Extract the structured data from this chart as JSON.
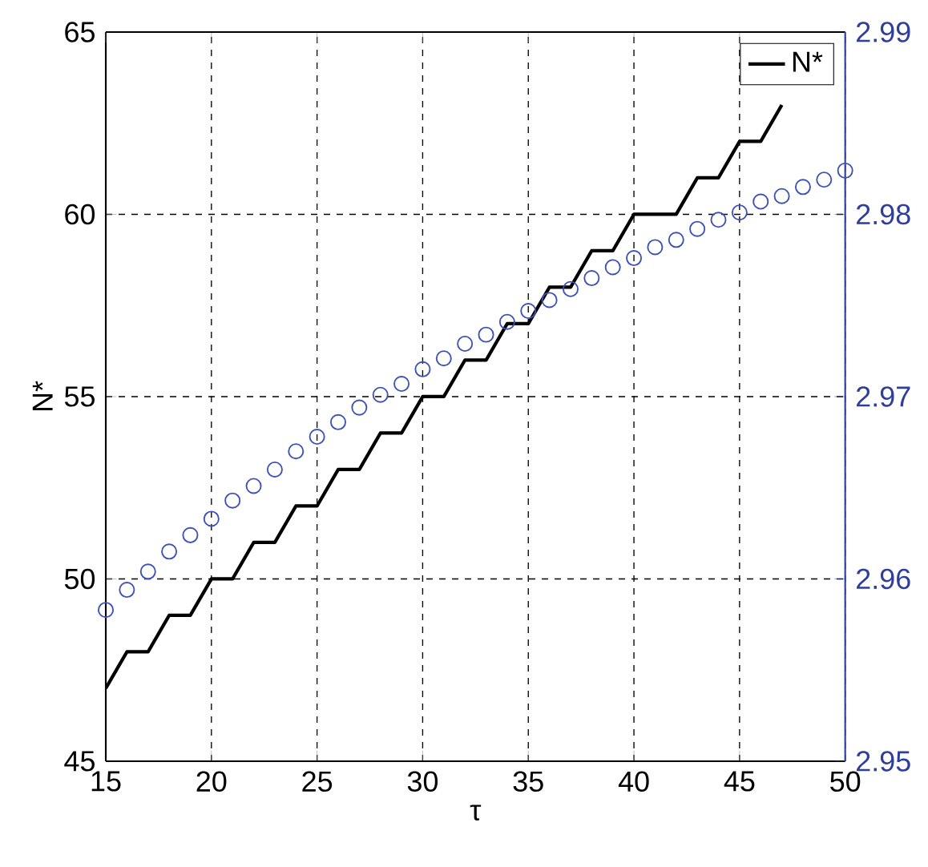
{
  "chart_data": {
    "type": "line",
    "xlabel": "τ",
    "ylabel": "N*",
    "x": [
      15,
      16,
      17,
      18,
      19,
      20,
      21,
      22,
      23,
      24,
      25,
      26,
      27,
      28,
      29,
      30,
      31,
      32,
      33,
      34,
      35,
      36,
      37,
      38,
      39,
      40,
      41,
      42,
      43,
      44,
      45,
      46,
      47,
      48,
      49,
      50
    ],
    "series": [
      {
        "name": "N*",
        "color": "#000000",
        "line_style": "solid",
        "values": [
          47,
          48,
          48,
          49,
          49,
          50,
          50,
          51,
          51,
          52,
          52,
          53,
          53,
          54,
          54,
          55,
          55,
          56,
          56,
          57,
          57,
          58,
          58,
          59,
          59,
          60,
          60,
          60,
          61,
          61,
          62,
          62,
          63,
          null,
          null,
          null
        ]
      },
      {
        "type": "scatter",
        "axis": "y2",
        "marker": "circle",
        "color": "#3f51b5",
        "values": [
          2.9583,
          2.9594,
          2.9604,
          2.9615,
          2.9624,
          2.9633,
          2.9643,
          2.9651,
          2.966,
          2.967,
          2.9678,
          2.9686,
          2.9694,
          2.9701,
          2.9707,
          2.9715,
          2.9721,
          2.9729,
          2.9734,
          2.9741,
          2.9747,
          2.9753,
          2.9759,
          2.9765,
          2.9771,
          2.9776,
          2.9782,
          2.9786,
          2.9792,
          2.9797,
          2.9801,
          2.9807,
          2.981,
          2.9815,
          2.9819,
          2.9824
        ]
      }
    ],
    "xlim": [
      15,
      50
    ],
    "xticks": [
      15,
      20,
      25,
      30,
      35,
      40,
      45,
      50
    ],
    "ylim": [
      45,
      65
    ],
    "yticks": [
      45,
      50,
      55,
      60,
      65
    ],
    "y2lim": [
      2.95,
      2.99
    ],
    "y2ticks": [
      2.95,
      2.96,
      2.97,
      2.98,
      2.99
    ],
    "grid": true,
    "legend": "top right"
  }
}
